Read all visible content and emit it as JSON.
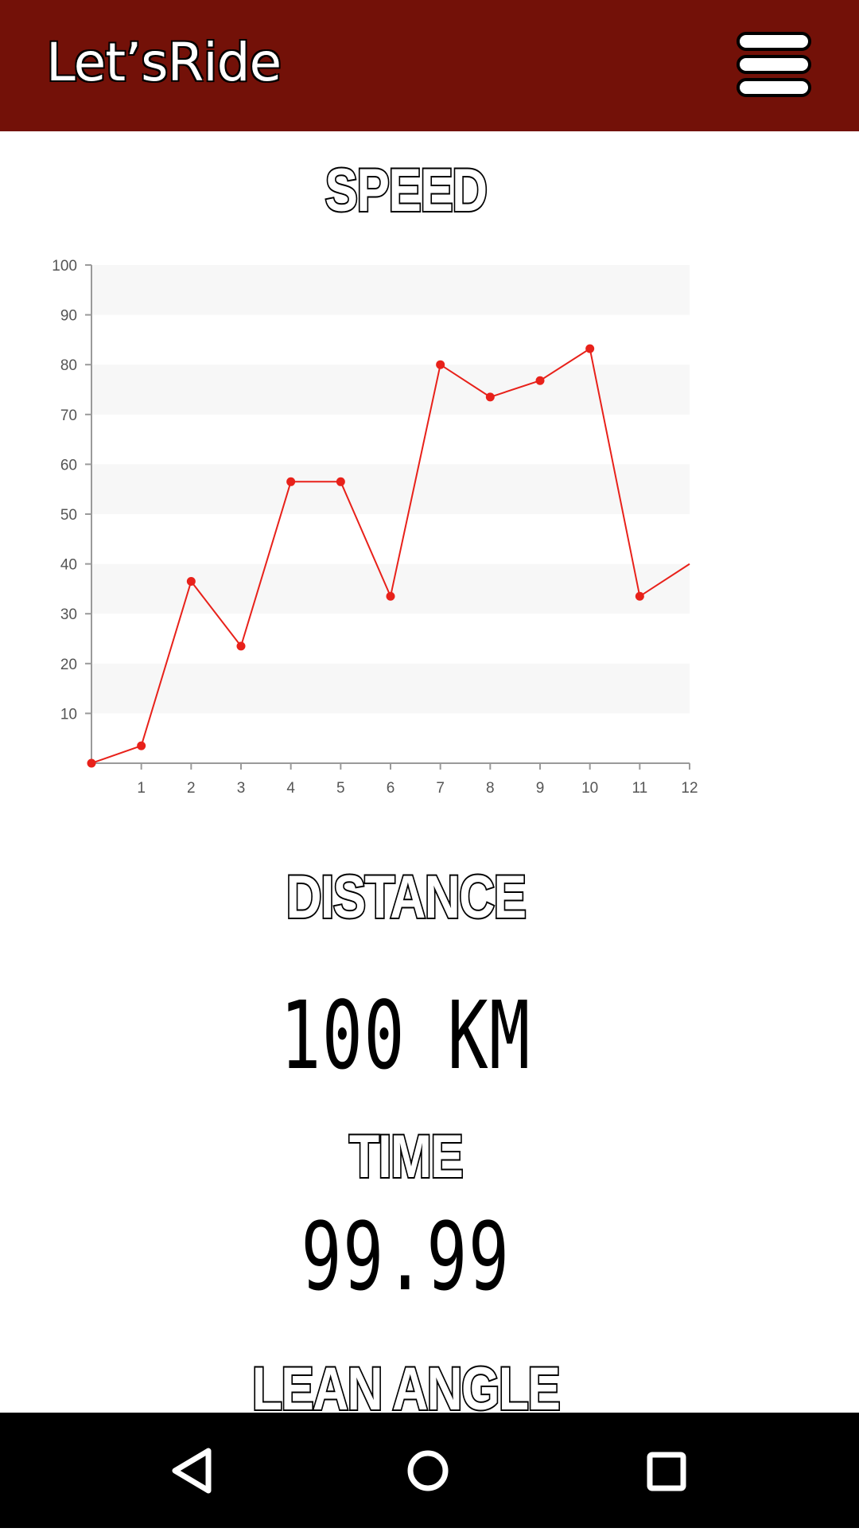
{
  "app_bar": {
    "title": "Let’sRide",
    "menu_icon": "hamburger-menu-icon",
    "background": "#731108"
  },
  "sections": {
    "speed_heading": "SPEED",
    "distance_heading": "DISTANCE",
    "distance_value": "100 KM",
    "time_heading": "TIME",
    "time_value": "99.99",
    "lean_angle_heading": "LEAN ANGLE"
  },
  "chart_data": {
    "type": "line",
    "title": "",
    "xlabel": "",
    "ylabel": "",
    "x": [
      0,
      1,
      2,
      3,
      4,
      5,
      6,
      7,
      8,
      9,
      10,
      11,
      12
    ],
    "xticks": [
      1,
      2,
      3,
      4,
      5,
      6,
      7,
      8,
      9,
      10,
      11,
      12
    ],
    "yticks": [
      10,
      20,
      30,
      40,
      50,
      60,
      70,
      80,
      90,
      100
    ],
    "series": [
      {
        "values": [
          0,
          3.5,
          36.5,
          23.5,
          56.5,
          56.5,
          33.5,
          80,
          73.5,
          76.8,
          83.2,
          33.5,
          40
        ],
        "color": "#e8211a"
      }
    ],
    "xlim": [
      0,
      12
    ],
    "ylim": [
      0,
      100
    ],
    "grid": "alternating-bands",
    "legend": "none",
    "marker_last_point": false
  },
  "nav_bar": {
    "back_icon": "back-triangle-icon",
    "home_icon": "home-circle-icon",
    "recents_icon": "recents-square-icon"
  }
}
